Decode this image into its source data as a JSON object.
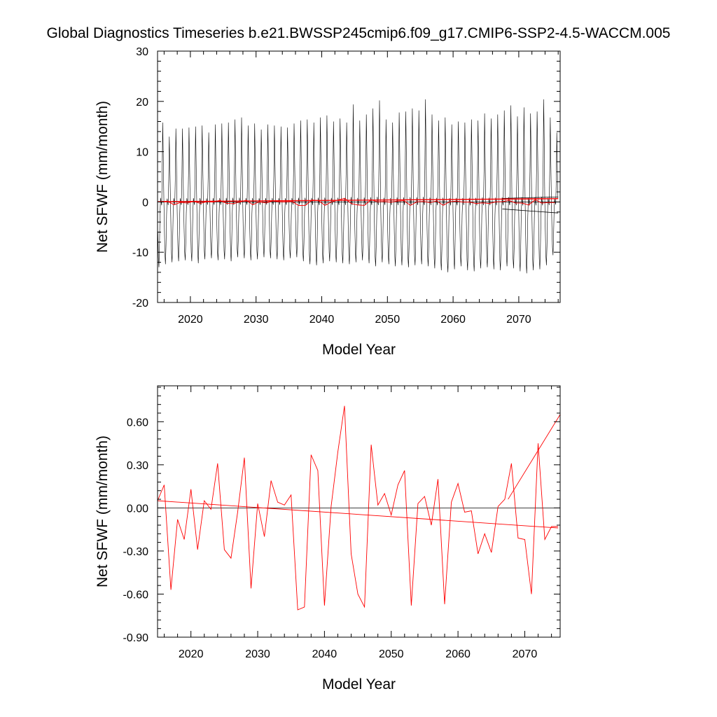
{
  "title": "Global Diagnostics Timeseries b.e21.BWSSP245cmip6.f09_g17.CMIP6-SSP2-4.5-WACCM.005",
  "colors": {
    "monthly": "#000000",
    "annual": "#ff0000",
    "zero_line": "#000000"
  },
  "chart_data": [
    {
      "type": "line",
      "xlabel": "Model Year",
      "ylabel": "Net SFWF (mm/month)",
      "xlim": [
        2015,
        2076.3
      ],
      "ylim": [
        -20,
        30
      ],
      "xticks": [
        2020,
        2030,
        2040,
        2050,
        2060,
        2070
      ],
      "xtick_labels": [
        "2020",
        "2030",
        "2040",
        "2050",
        "2060",
        "2070"
      ],
      "yticks": [
        -20,
        -10,
        0,
        10,
        20,
        30
      ],
      "ytick_labels": [
        "-20",
        "-10",
        "0",
        "10",
        "20",
        "30"
      ],
      "reference_line": 0,
      "monthly_cycle": {
        "start_year": 2015,
        "years": 61,
        "annual_peaks": [
          15.8,
          13.0,
          14.6,
          14.6,
          14.8,
          15.0,
          15.2,
          13.8,
          15.4,
          15.6,
          15.8,
          16.4,
          16.8,
          15.2,
          15.6,
          14.4,
          15.4,
          15.2,
          15.0,
          14.8,
          15.6,
          16.2,
          16.4,
          15.8,
          16.8,
          17.2,
          16.0,
          16.6,
          15.8,
          19.4,
          16.2,
          17.4,
          18.6,
          20.2,
          16.4,
          15.8,
          17.8,
          18.0,
          18.6,
          18.2,
          20.4,
          17.4,
          16.2,
          16.8,
          15.4,
          16.0,
          15.8,
          16.4,
          16.2,
          17.6,
          16.6,
          17.4,
          18.2,
          19.2,
          17.0,
          18.8,
          17.6,
          18.0,
          20.4,
          16.8,
          13.8
        ],
        "annual_troughs": [
          -13.0,
          -12.4,
          -12.0,
          -11.8,
          -11.6,
          -11.8,
          -12.2,
          -11.4,
          -11.2,
          -11.6,
          -11.4,
          -11.8,
          -11.0,
          -11.2,
          -11.6,
          -11.4,
          -11.0,
          -11.2,
          -11.4,
          -11.6,
          -11.2,
          -11.0,
          -11.8,
          -12.4,
          -12.6,
          -12.2,
          -11.8,
          -12.0,
          -12.2,
          -12.4,
          -12.0,
          -11.6,
          -12.2,
          -12.8,
          -12.0,
          -12.4,
          -12.8,
          -12.6,
          -13.0,
          -12.6,
          -12.4,
          -12.8,
          -13.2,
          -13.6,
          -14.0,
          -13.4,
          -12.8,
          -13.6,
          -13.8,
          -13.2,
          -13.0,
          -13.4,
          -13.6,
          -12.8,
          -13.2,
          -13.8,
          -14.2,
          -13.6,
          -13.4,
          -12.6,
          -10.6
        ]
      },
      "series": [
        {
          "values_ref": "monthly_cycle",
          "color": "#000000"
        },
        {
          "values_ref": "annual_mean",
          "color": "#ff0000"
        }
      ],
      "annotations": [
        {
          "type": "segment",
          "x": [
            2067.5,
            2076
          ],
          "y": [
            -1.4,
            -2.2
          ],
          "color": "#000000"
        },
        {
          "type": "segment",
          "x": [
            2067.5,
            2076
          ],
          "y": [
            0.7,
            1.0
          ],
          "color": "#000000"
        },
        {
          "type": "segment",
          "x": [
            2015,
            2076
          ],
          "y": [
            0.05,
            0.65
          ],
          "color": "#ff0000"
        }
      ]
    },
    {
      "type": "line",
      "xlabel": "Model Year",
      "ylabel": "Net SFWF (mm/month)",
      "xlim": [
        2015,
        2075.3
      ],
      "ylim": [
        -0.9,
        0.85
      ],
      "xticks": [
        2020,
        2030,
        2040,
        2050,
        2060,
        2070
      ],
      "xtick_labels": [
        "2020",
        "2030",
        "2040",
        "2050",
        "2060",
        "2070"
      ],
      "yticks": [
        -0.9,
        -0.6,
        -0.3,
        0.0,
        0.3,
        0.6
      ],
      "ytick_labels": [
        "-0.90",
        "-0.60",
        "-0.30",
        "0.00",
        "0.30",
        "0.60"
      ],
      "reference_line": 0,
      "series": [
        {
          "color": "#ff0000",
          "x": [
            2015,
            2016,
            2017,
            2018,
            2019,
            2020,
            2021,
            2022,
            2023,
            2024,
            2025,
            2026,
            2027,
            2028,
            2029,
            2030,
            2031,
            2032,
            2033,
            2034,
            2035,
            2036,
            2037,
            2038,
            2039,
            2040,
            2041,
            2042,
            2043,
            2044,
            2045,
            2046,
            2047,
            2048,
            2049,
            2050,
            2051,
            2052,
            2053,
            2054,
            2055,
            2056,
            2057,
            2058,
            2059,
            2060,
            2061,
            2062,
            2063,
            2064,
            2065,
            2066,
            2067,
            2068,
            2069,
            2070,
            2071,
            2072,
            2073,
            2074,
            2075
          ],
          "values": [
            0.05,
            0.16,
            -0.57,
            -0.08,
            -0.22,
            0.13,
            -0.29,
            0.05,
            -0.01,
            0.31,
            -0.29,
            -0.35,
            -0.03,
            0.35,
            -0.56,
            0.03,
            -0.2,
            0.19,
            0.04,
            0.02,
            0.09,
            -0.71,
            -0.69,
            0.37,
            0.26,
            -0.68,
            0.01,
            0.39,
            0.71,
            -0.32,
            -0.6,
            -0.69,
            0.44,
            0.02,
            0.1,
            -0.05,
            0.16,
            0.26,
            -0.68,
            0.03,
            0.08,
            -0.12,
            0.2,
            -0.67,
            0.04,
            0.17,
            -0.03,
            -0.02,
            -0.32,
            -0.18,
            -0.31,
            0.01,
            0.06,
            0.31,
            -0.21,
            -0.22,
            -0.6,
            0.45,
            -0.22,
            -0.13,
            -0.13
          ]
        }
      ],
      "annotations": [
        {
          "type": "trend",
          "x": [
            2015,
            2075
          ],
          "y": [
            0.05,
            -0.14
          ],
          "color": "#ff0000"
        },
        {
          "type": "segment",
          "x": [
            2067.5,
            2075.3
          ],
          "y": [
            0.06,
            0.65
          ],
          "color": "#ff0000"
        }
      ]
    }
  ]
}
